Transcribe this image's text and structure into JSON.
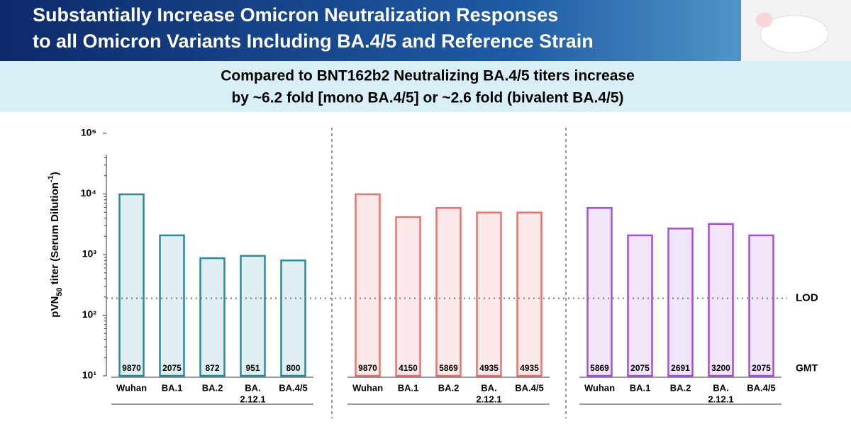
{
  "header": {
    "lines": [
      "Substantially Increase Omicron Neutralization Responses",
      "to all Omicron Variants Including BA.4/5 and Reference Strain"
    ]
  },
  "subtitle": {
    "lines": [
      "Compared to BNT162b2 Neutralizing BA.4/5 titers increase",
      "by ~6.2 fold [mono BA.4/5] or ~2.6 fold (bivalent BA.4/5)"
    ]
  },
  "chart_data": {
    "type": "bar",
    "log_scale": true,
    "ylabel": {
      "parts": [
        "pVN",
        "50",
        " titer (Serum Dilution",
        "-1",
        ")"
      ]
    },
    "ylim": [
      10,
      100000
    ],
    "yticks": [
      {
        "value": 10,
        "label": "10¹"
      },
      {
        "value": 100,
        "label": "10²"
      },
      {
        "value": 1000,
        "label": "10³"
      },
      {
        "value": 10000,
        "label": "10⁴"
      },
      {
        "value": 100000,
        "label": "10⁵"
      }
    ],
    "categories": [
      [
        "Wuhan"
      ],
      [
        "BA.1"
      ],
      [
        "BA.2"
      ],
      [
        "BA.",
        "2.12.1"
      ],
      [
        "BA.4/5"
      ]
    ],
    "series": [
      {
        "color": "#2b8c99",
        "values": [
          9870,
          2075,
          872,
          951,
          800
        ]
      },
      {
        "color": "#ee7070",
        "values": [
          9870,
          4150,
          5869,
          4935,
          4935
        ]
      },
      {
        "color": "#a44ee0",
        "values": [
          5869,
          2075,
          2691,
          3200,
          2075
        ]
      }
    ],
    "lod": {
      "value": 190,
      "label": "LOD"
    },
    "value_label_title": "GMT"
  }
}
